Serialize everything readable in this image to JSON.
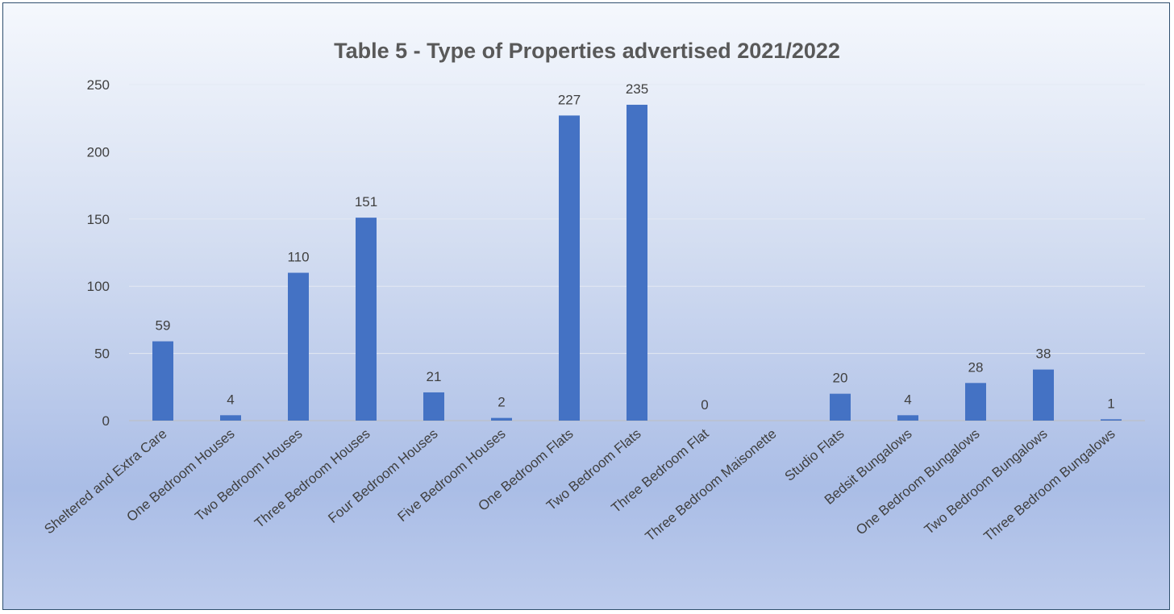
{
  "chart_data": {
    "type": "bar",
    "title": "Table 5 - Type of Properties advertised 2021/2022",
    "xlabel": "",
    "ylabel": "",
    "ylim": [
      0,
      250
    ],
    "yticks": [
      0,
      50,
      100,
      150,
      200,
      250
    ],
    "grid": true,
    "legend": "none",
    "bar_color": "#4472c4",
    "categories": [
      "Sheltered and Extra Care",
      "One Bedroom Houses",
      "Two Bedroom Houses",
      "Three Bedroom Houses",
      "Four Bedroom Houses",
      "Five Bedroom Houses",
      "One Bedroom Flats",
      "Two Bedroom Flats",
      "Three Bedroom Flat",
      "Three Bedroom Maisonette",
      "Studio Flats",
      "Bedsit Bungalows",
      "One Bedroom Bungalows",
      "Two Bedroom Bungalows",
      "Three Bedroom Bungalows"
    ],
    "values": [
      59,
      4,
      110,
      151,
      21,
      2,
      227,
      235,
      0,
      null,
      20,
      4,
      28,
      38,
      1
    ]
  }
}
